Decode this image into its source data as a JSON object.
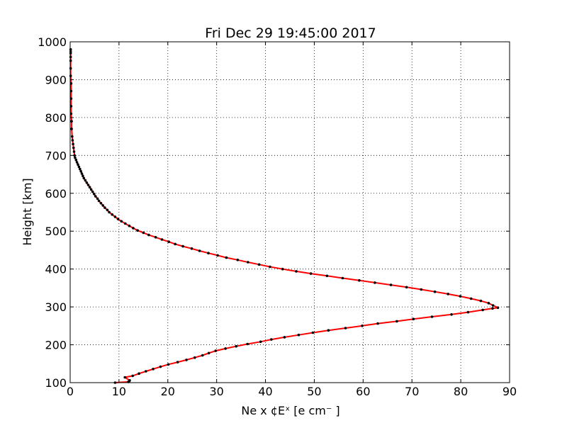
{
  "chart_data": {
    "type": "line",
    "title": "Fri Dec 29 19:45:00 2017",
    "xlabel": "Ne x ¢Eˣ  [e cm⁻ ]",
    "ylabel": "Height [km]",
    "xlim": [
      0,
      90
    ],
    "ylim": [
      100,
      1000
    ],
    "xticks": [
      "0",
      "10",
      "20",
      "30",
      "40",
      "50",
      "60",
      "70",
      "80",
      "90"
    ],
    "yticks": [
      "100",
      "200",
      "300",
      "400",
      "500",
      "600",
      "700",
      "800",
      "900",
      "1000"
    ],
    "grid": true,
    "line_color": "#ff0000",
    "marker_color": "#000000",
    "series": [
      {
        "x": [
          9.2,
          11.9,
          12.1,
          12.2,
          11.2,
          12.8,
          14.1,
          15.5,
          17.0,
          18.5,
          20.1,
          22.0,
          23.8,
          25.5,
          27.1,
          28.4,
          29.8,
          31.8,
          34.0,
          36.3,
          39.0,
          41.2,
          43.9,
          46.8,
          49.7,
          52.9,
          56.4,
          59.8,
          63.0,
          66.9,
          70.3,
          74.1,
          78.1,
          81.5,
          84.5,
          86.5,
          87.6,
          86.6,
          85.7,
          84.1,
          82.1,
          79.9,
          77.4,
          74.7,
          71.9,
          68.9,
          65.7,
          62.4,
          59.2,
          55.8,
          52.6,
          49.3,
          46.3,
          43.5,
          40.9,
          38.7,
          36.4,
          34.3,
          32.0,
          30.2,
          28.3,
          26.5,
          24.9,
          23.1,
          21.5,
          20.2,
          18.8,
          17.5,
          16.1,
          15.0,
          13.8,
          12.9,
          12.1,
          11.3,
          10.5,
          9.8,
          9.2,
          8.6,
          8.0,
          7.6,
          7.1,
          6.7,
          6.3,
          5.9,
          5.6,
          5.2,
          4.9,
          4.6,
          4.3,
          4.0,
          3.7,
          3.4,
          3.1,
          2.8,
          2.6,
          2.4,
          2.2,
          2.0,
          1.8,
          1.6,
          1.4,
          1.2,
          1.0,
          0.9,
          0.8,
          0.7,
          0.6,
          0.5,
          0.4,
          0.3,
          0.3,
          0.2,
          0.2,
          0.2,
          0.2,
          0.2,
          0.1,
          0.1,
          0.1,
          0.1,
          0.1,
          0.1,
          0.1
        ],
        "y": [
          100,
          102,
          104,
          106,
          114,
          118,
          124,
          130,
          136,
          142,
          148,
          154,
          160,
          166,
          172,
          178,
          184,
          190,
          196,
          202,
          208,
          214,
          220,
          226,
          232,
          238,
          244,
          250,
          256,
          262,
          268,
          274,
          280,
          286,
          292,
          296,
          298,
          304,
          310,
          316,
          322,
          328,
          334,
          340,
          346,
          352,
          358,
          364,
          370,
          376,
          382,
          388,
          394,
          400,
          406,
          412,
          418,
          424,
          430,
          436,
          442,
          448,
          454,
          460,
          466,
          472,
          478,
          484,
          490,
          496,
          502,
          508,
          514,
          520,
          526,
          532,
          538,
          544,
          550,
          556,
          562,
          568,
          574,
          580,
          586,
          592,
          598,
          604,
          610,
          616,
          622,
          628,
          634,
          640,
          646,
          652,
          658,
          664,
          670,
          676,
          682,
          688,
          694,
          700,
          710,
          720,
          730,
          740,
          750,
          770,
          790,
          810,
          830,
          850,
          870,
          890,
          910,
          930,
          950,
          960,
          970,
          975,
          980
        ]
      }
    ]
  }
}
